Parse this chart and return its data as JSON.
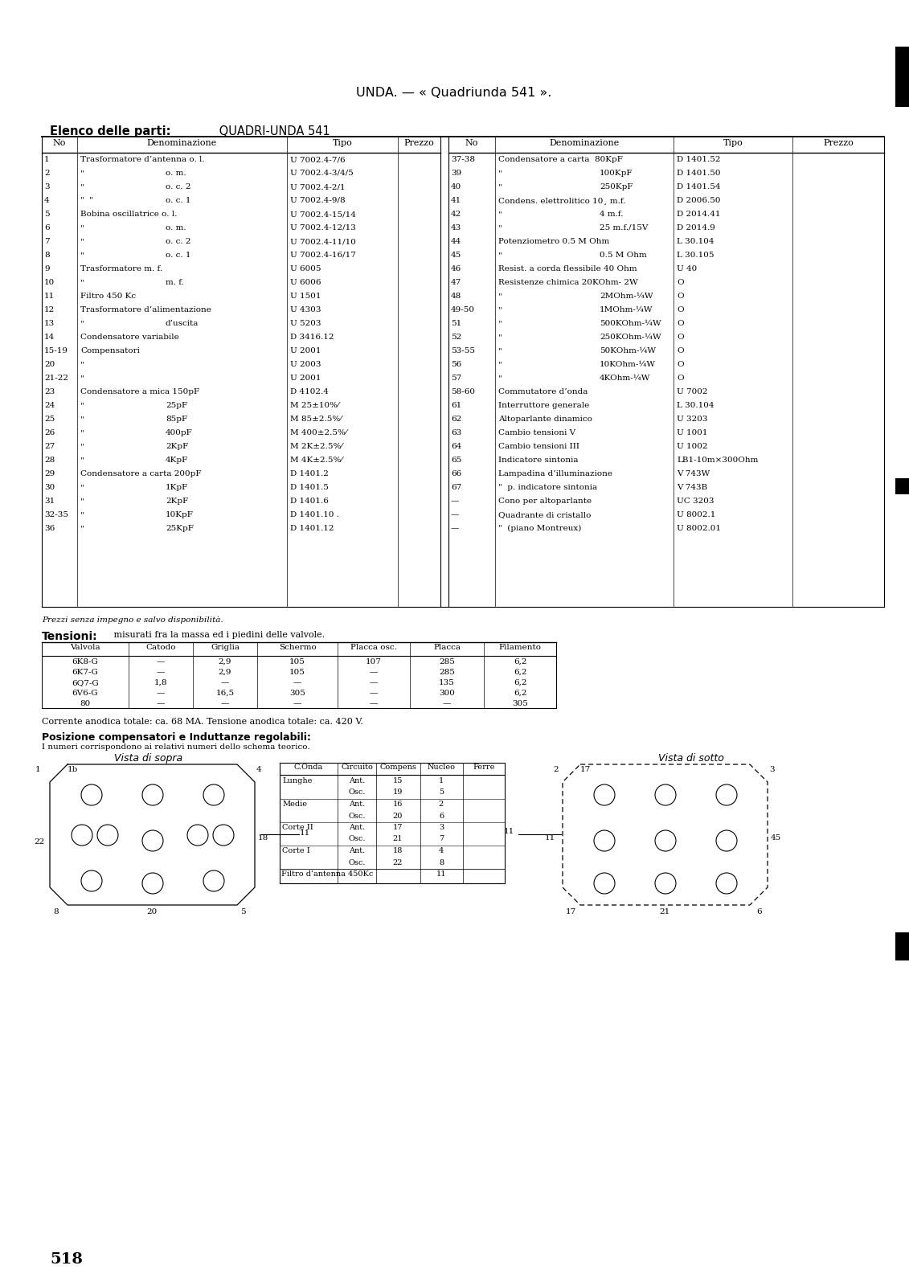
{
  "title": "UNDA. — « Quadriunda 541 ».",
  "bg": "#f5f5f0",
  "left_data": [
    [
      "1",
      "Trasformatore d’antenna o. l.",
      "",
      "U 7002.4-7/6"
    ],
    [
      "2",
      "\"",
      "o. m.",
      "U 7002.4-3/4/5"
    ],
    [
      "3",
      "\"",
      "o. c. 2",
      "U 7002.4-2/1"
    ],
    [
      "4",
      "\"  \"",
      "o. c. 1",
      "U 7002.4-9/8"
    ],
    [
      "5",
      "Bobina oscillatrice o. l.",
      "",
      "U 7002.4-15/14"
    ],
    [
      "6",
      "\"",
      "o. m.",
      "U 7002.4-12/13"
    ],
    [
      "7",
      "\"",
      "o. c. 2",
      "U 7002.4-11/10"
    ],
    [
      "8",
      "\"",
      "o. c. 1",
      "U 7002.4-16/17"
    ],
    [
      "9",
      "Trasformatore m. f.",
      "",
      "U 6005"
    ],
    [
      "10",
      "\"",
      "m. f.",
      "U 6006"
    ],
    [
      "11",
      "Filtro 450 Kc",
      "",
      "U 1501"
    ],
    [
      "12",
      "Trasformatore d’alimentazione",
      "",
      "U 4303"
    ],
    [
      "13",
      "\"",
      "d’uscita",
      "U 5203"
    ],
    [
      "14",
      "Condensatore variabile",
      "",
      "D 3416.12"
    ],
    [
      "15-19",
      "Compensatori",
      "",
      "U 2001"
    ],
    [
      "20",
      "\"",
      "",
      "U 2003"
    ],
    [
      "21-22",
      "\"",
      "",
      "U 2001"
    ],
    [
      "23",
      "Condensatore a mica 150pF",
      "",
      "D 4102.4"
    ],
    [
      "24",
      "\"",
      "25pF",
      "M 25±10%⁄"
    ],
    [
      "25",
      "\"",
      "85pF",
      "M 85±2.5%⁄"
    ],
    [
      "26",
      "\"",
      "400pF",
      "M 400±2.5%⁄"
    ],
    [
      "27",
      "\"",
      "2KpF",
      "M 2K±2.5%⁄"
    ],
    [
      "28",
      "\"",
      "4KpF",
      "M 4K±2.5%⁄"
    ],
    [
      "29",
      "Condensatore a carta 200pF",
      "",
      "D 1401.2"
    ],
    [
      "30",
      "\"",
      "1KpF",
      "D 1401.5"
    ],
    [
      "31",
      "\"",
      "2KpF",
      "D 1401.6"
    ],
    [
      "32-35",
      "\"",
      "10KpF",
      "D 1401.10 ."
    ],
    [
      "36",
      "\"",
      "25KpF",
      "D 1401.12"
    ]
  ],
  "right_data": [
    [
      "37-38",
      "Condensatore a carta  80KpF",
      "D 1401.52",
      ""
    ],
    [
      "39",
      "\"",
      "100KpF",
      "D 1401.50"
    ],
    [
      "40",
      "\"",
      "250KpF",
      "D 1401.54"
    ],
    [
      "41",
      "Condens. elettrolitico 10¸ m.f.",
      "D 2006.50",
      ""
    ],
    [
      "42",
      "\"",
      "4 m.f.",
      "D 2014.41"
    ],
    [
      "43",
      "\"",
      "25 m.f./15V",
      "D 2014.9"
    ],
    [
      "44",
      "Potenziometro 0.5 M Ohm",
      "L 30.104",
      ""
    ],
    [
      "45",
      "\"",
      "0.5 M Ohm",
      "L 30.105"
    ],
    [
      "46",
      "Resist. a corda flessibile 40 Ohm",
      "U 40",
      ""
    ],
    [
      "47",
      "Resistenze chimica 20KOhm- 2W",
      "O",
      ""
    ],
    [
      "48",
      "\"",
      "2MOhm-¼W",
      "O"
    ],
    [
      "49-50",
      "\"",
      "1MOhm-¼W",
      "O"
    ],
    [
      "51",
      "\"",
      "500KOhm-¼W",
      "O"
    ],
    [
      "52",
      "\"",
      "250KOhm-¼W",
      "O"
    ],
    [
      "53-55",
      "\"",
      "50KOhm-¼W",
      "O"
    ],
    [
      "56",
      "\"",
      "10KOhm-¼W",
      "O"
    ],
    [
      "57",
      "\"",
      "4KOhm-¼W",
      "O"
    ],
    [
      "58-60",
      "Commutatore d’onda",
      "U 7002",
      ""
    ],
    [
      "61",
      "Interruttore generale",
      "L 30.104",
      ""
    ],
    [
      "62",
      "Altoparlante dinamico",
      "U 3203",
      ""
    ],
    [
      "63",
      "Cambio tensioni V",
      "U 1001",
      ""
    ],
    [
      "64",
      "Cambio tensioni III",
      "U 1002",
      ""
    ],
    [
      "65",
      "Indicatore sintonia",
      "LB1-10m×300Ohm",
      ""
    ],
    [
      "66",
      "Lampadina d’illuminazione",
      "V 743W",
      ""
    ],
    [
      "67",
      "\"  p. indicatore sintonia",
      "V 743B",
      ""
    ],
    [
      "—",
      "Cono per altoparlante",
      "UC 3203",
      ""
    ],
    [
      "—",
      "Quadrante di cristallo",
      "U 8002.1",
      ""
    ],
    [
      "—",
      "\"  (piano Montreux)",
      "U 8002.01",
      ""
    ]
  ],
  "tensioni_rows": [
    [
      "6K8-G",
      "—",
      "2,9",
      "105",
      "107",
      "285",
      "6,2"
    ],
    [
      "6K7-G",
      "—",
      "2,9",
      "105",
      "—",
      "285",
      "6,2"
    ],
    [
      "6Q7-G",
      "1,8",
      "—",
      "—",
      "—",
      "135",
      "6,2"
    ],
    [
      "6V6-G",
      "—",
      "16,5",
      "305",
      "—",
      "300",
      "6,2"
    ],
    [
      "80",
      "—",
      "—",
      "—",
      "—",
      "—",
      "305"
    ]
  ],
  "onda_rows": [
    [
      "Lunghe",
      "Ant.",
      "15",
      "1"
    ],
    [
      "",
      "Osc.",
      "19",
      "5"
    ],
    [
      "Medie",
      "Ant.",
      "16",
      "2"
    ],
    [
      "",
      "Osc.",
      "20",
      "6"
    ],
    [
      "Corte II",
      "Ant.",
      "17",
      "3"
    ],
    [
      "",
      "Osc.",
      "21",
      "7"
    ],
    [
      "Corte I",
      "Ant.",
      "18",
      "4"
    ],
    [
      "",
      "Osc.",
      "22",
      "8"
    ]
  ]
}
